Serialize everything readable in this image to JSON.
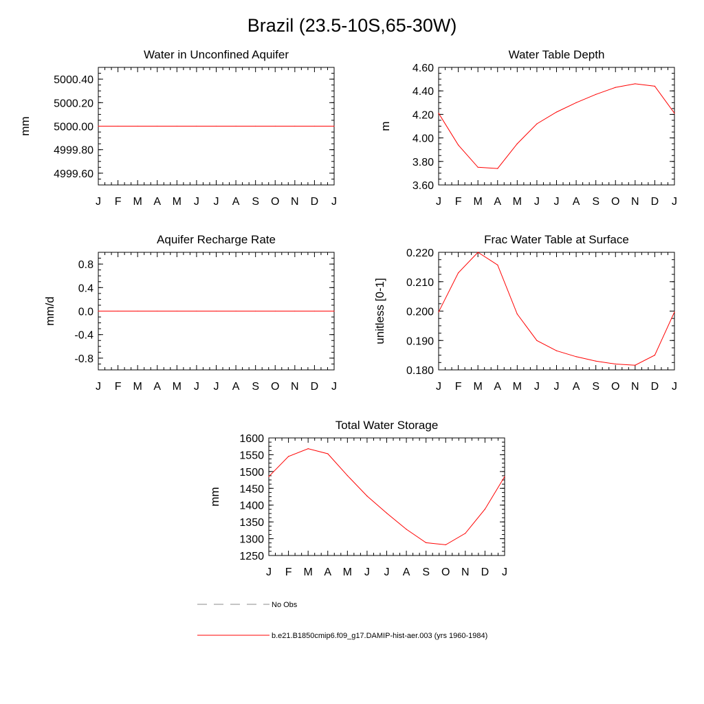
{
  "figure": {
    "title": "Brazil (23.5-10S,65-30W)"
  },
  "chart_data": [
    {
      "id": "aquifer-water",
      "type": "line",
      "title": "Water in Unconfined Aquifer",
      "xlabel": "",
      "ylabel": "mm",
      "x_tick_labels": [
        "J",
        "F",
        "M",
        "A",
        "M",
        "J",
        "J",
        "A",
        "S",
        "O",
        "N",
        "D",
        "J"
      ],
      "ylim": [
        4999.5,
        5000.5
      ],
      "y_ticks": [
        4999.6,
        4999.8,
        5000.0,
        5000.2,
        5000.4
      ],
      "y_tick_labels": [
        "4999.60",
        "4999.80",
        "5000.00",
        "5000.20",
        "5000.40"
      ],
      "series": [
        {
          "color": "#ff0000",
          "values": [
            5000,
            5000,
            5000,
            5000,
            5000,
            5000,
            5000,
            5000,
            5000,
            5000,
            5000,
            5000,
            5000
          ]
        }
      ]
    },
    {
      "id": "water-table-depth",
      "type": "line",
      "title": "Water Table Depth",
      "xlabel": "",
      "ylabel": "m",
      "x_tick_labels": [
        "J",
        "F",
        "M",
        "A",
        "M",
        "J",
        "J",
        "A",
        "S",
        "O",
        "N",
        "D",
        "J"
      ],
      "ylim": [
        3.6,
        4.6
      ],
      "y_ticks": [
        3.6,
        3.8,
        4.0,
        4.2,
        4.4,
        4.6
      ],
      "y_tick_labels": [
        "3.60",
        "3.80",
        "4.00",
        "4.20",
        "4.40",
        "4.60"
      ],
      "series": [
        {
          "color": "#ff0000",
          "values": [
            4.21,
            3.94,
            3.75,
            3.74,
            3.95,
            4.12,
            4.22,
            4.3,
            4.37,
            4.43,
            4.46,
            4.44,
            4.21
          ]
        }
      ]
    },
    {
      "id": "recharge-rate",
      "type": "line",
      "title": "Aquifer Recharge Rate",
      "xlabel": "",
      "ylabel": "mm/d",
      "x_tick_labels": [
        "J",
        "F",
        "M",
        "A",
        "M",
        "J",
        "J",
        "A",
        "S",
        "O",
        "N",
        "D",
        "J"
      ],
      "ylim": [
        -1.0,
        1.0
      ],
      "y_ticks": [
        -0.8,
        -0.4,
        0.0,
        0.4,
        0.8
      ],
      "y_tick_labels": [
        "-0.8",
        "-0.4",
        "0.0",
        "0.4",
        "0.8"
      ],
      "series": [
        {
          "color": "#ff0000",
          "values": [
            0,
            0,
            0,
            0,
            0,
            0,
            0,
            0,
            0,
            0,
            0,
            0,
            0
          ]
        }
      ]
    },
    {
      "id": "frac-water-table",
      "type": "line",
      "title": "Frac Water Table at Surface",
      "xlabel": "",
      "ylabel": "unitless [0-1]",
      "x_tick_labels": [
        "J",
        "F",
        "M",
        "A",
        "M",
        "J",
        "J",
        "A",
        "S",
        "O",
        "N",
        "D",
        "J"
      ],
      "ylim": [
        0.18,
        0.22
      ],
      "y_ticks": [
        0.18,
        0.19,
        0.2,
        0.21,
        0.22
      ],
      "y_tick_labels": [
        "0.180",
        "0.190",
        "0.200",
        "0.210",
        "0.220"
      ],
      "series": [
        {
          "color": "#ff0000",
          "values": [
            0.1997,
            0.213,
            0.22,
            0.2157,
            0.199,
            0.19,
            0.1865,
            0.1845,
            0.183,
            0.182,
            0.1816,
            0.185,
            0.1997
          ]
        }
      ]
    },
    {
      "id": "total-water-storage",
      "type": "line",
      "title": "Total Water Storage",
      "xlabel": "",
      "ylabel": "mm",
      "x_tick_labels": [
        "J",
        "F",
        "M",
        "A",
        "M",
        "J",
        "J",
        "A",
        "S",
        "O",
        "N",
        "D",
        "J"
      ],
      "ylim": [
        1250,
        1600
      ],
      "y_ticks": [
        1250,
        1300,
        1350,
        1400,
        1450,
        1500,
        1550,
        1600
      ],
      "y_tick_labels": [
        "1250",
        "1300",
        "1350",
        "1400",
        "1450",
        "1500",
        "1550",
        "1600"
      ],
      "series": [
        {
          "color": "#ff0000",
          "values": [
            1485,
            1545,
            1568,
            1553,
            1488,
            1427,
            1376,
            1328,
            1288,
            1282,
            1316,
            1388,
            1485
          ]
        }
      ]
    }
  ],
  "legend": {
    "items": [
      {
        "label": "No Obs",
        "color": "#888888",
        "dash": "14,10"
      },
      {
        "label": "b.e21.B1850cmip6.f09_g17.DAMIP-hist-aer.003 (yrs 1960-1984)",
        "color": "#ff0000",
        "dash": ""
      }
    ]
  }
}
